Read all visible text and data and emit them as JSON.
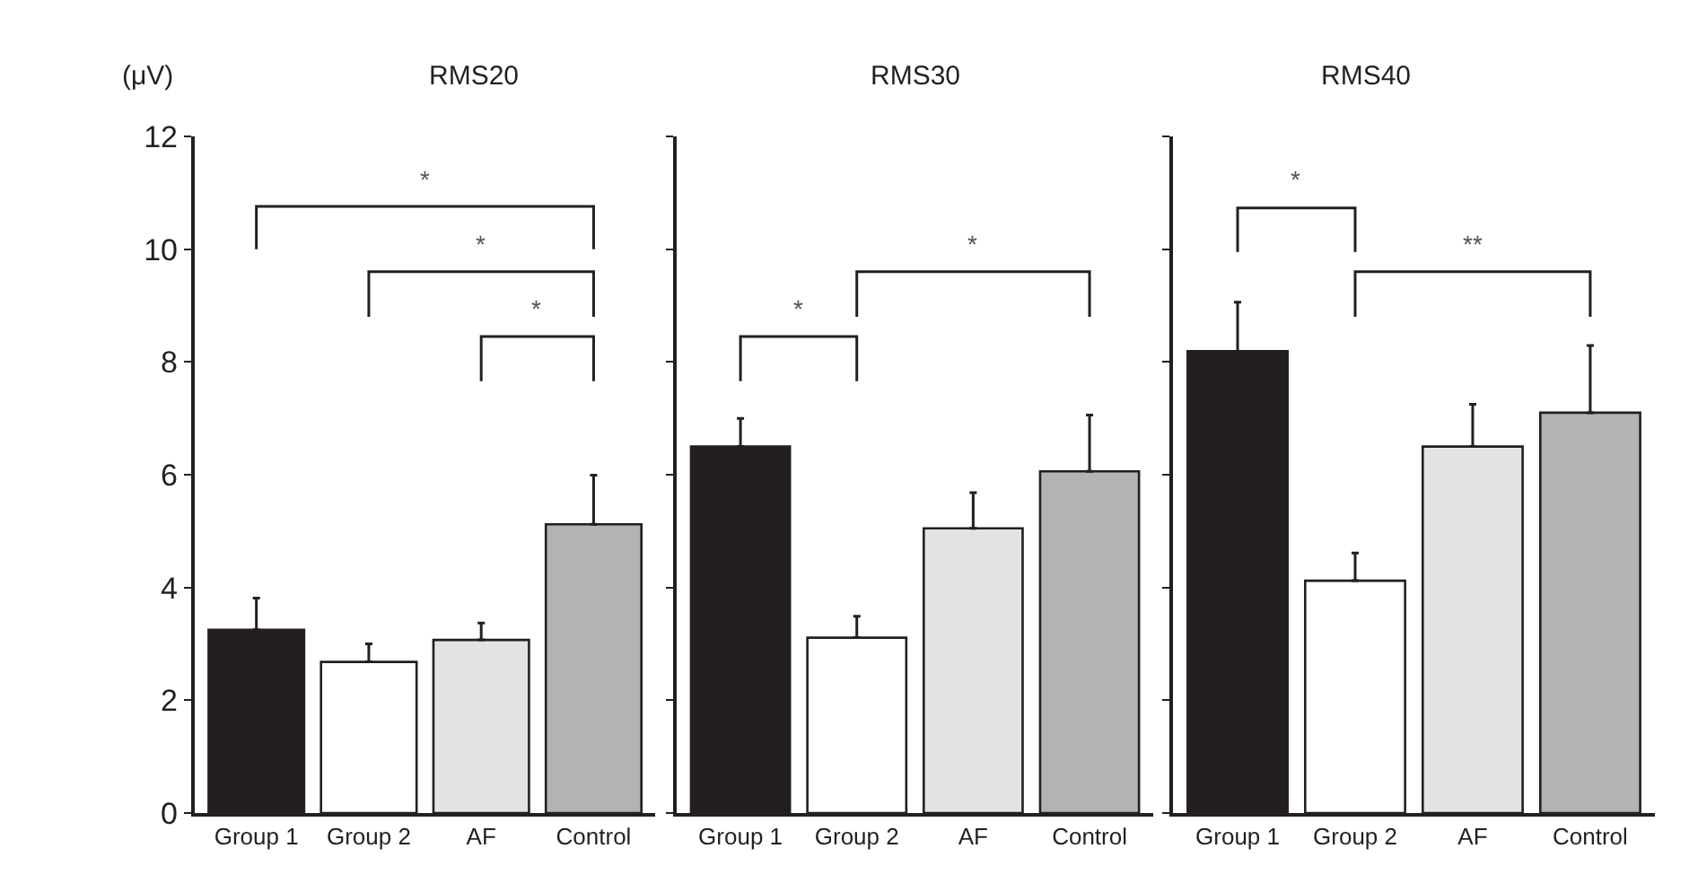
{
  "chart_data": [
    {
      "type": "bar",
      "title": "RMS20",
      "ylabel": "(μV)",
      "categories": [
        "Group 1",
        "Group 2",
        "AF",
        "Control"
      ],
      "values": [
        3.25,
        2.68,
        3.07,
        5.12
      ],
      "colors": [
        "#231f20",
        "#ffffff",
        "#e3e3e3",
        "#b3b3b3"
      ],
      "errors": [
        [
          3.25,
          3.81
        ],
        [
          2.68,
          3.0
        ],
        [
          3.07,
          3.37
        ],
        [
          5.12,
          5.99
        ]
      ],
      "ylim": [
        0,
        12
      ],
      "yticks": [
        0,
        2,
        4,
        6,
        8,
        10,
        12
      ],
      "annotations": [
        "*",
        "*",
        "*"
      ]
    },
    {
      "type": "bar",
      "title": "RMS30",
      "categories": [
        "Group 1",
        "Group 2",
        "AF",
        "Control"
      ],
      "values": [
        6.5,
        3.11,
        5.05,
        6.06
      ],
      "colors": [
        "#231f20",
        "#ffffff",
        "#e3e3e3",
        "#b3b3b3"
      ],
      "errors": [
        [
          6.5,
          7.0
        ],
        [
          3.11,
          3.49
        ],
        [
          5.05,
          5.68
        ],
        [
          6.06,
          7.06
        ]
      ],
      "ylim": [
        0,
        12
      ],
      "yticks": [
        0,
        2,
        4,
        6,
        8,
        10,
        12
      ],
      "tick_labels": "x",
      "annotations": [
        "*",
        "*"
      ]
    },
    {
      "type": "bar",
      "title": "RMS40",
      "categories": [
        "Group 1",
        "Group 2",
        "AF",
        "Control"
      ],
      "values": [
        8.19,
        4.12,
        6.5,
        7.1
      ],
      "colors": [
        "#231f20",
        "#ffffff",
        "#e3e3e3",
        "#b3b3b3"
      ],
      "errors": [
        [
          8.19,
          9.06
        ],
        [
          4.12,
          4.61
        ],
        [
          6.5,
          7.25
        ],
        [
          7.1,
          8.29
        ]
      ],
      "ylim": [
        0,
        12
      ],
      "yticks": [
        0,
        2,
        4,
        6,
        8,
        10,
        12
      ],
      "tick_labels": "x",
      "annotations": [
        "*",
        "**"
      ]
    }
  ]
}
